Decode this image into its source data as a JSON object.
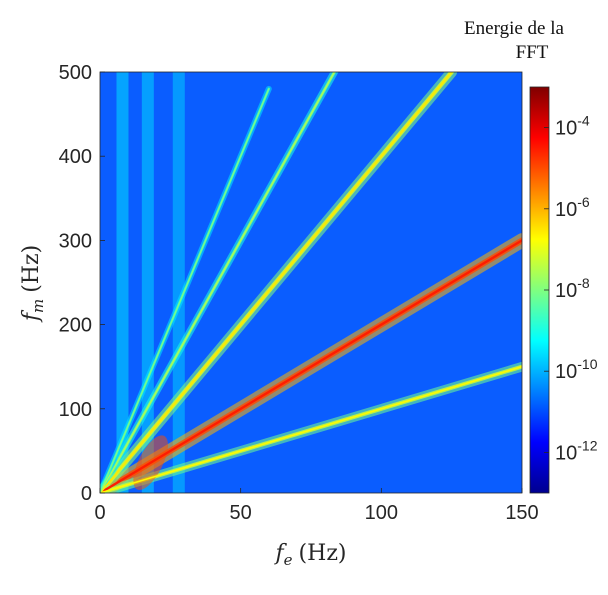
{
  "chart_data": {
    "type": "heatmap",
    "title": "",
    "xlabel_symbol": "f",
    "xlabel_sub": "e",
    "xlabel_unit": "(Hz)",
    "ylabel_symbol": "f",
    "ylabel_sub": "m",
    "ylabel_unit": "(Hz)",
    "xlim": [
      0,
      150
    ],
    "ylim": [
      0,
      500
    ],
    "x_ticks": [
      0,
      50,
      100,
      150
    ],
    "y_ticks": [
      0,
      100,
      200,
      300,
      400,
      500
    ],
    "colorbar": {
      "title_line1": "Energie de la",
      "title_line2": "FFT",
      "scale": "log",
      "range": [
        1e-13,
        0.001
      ],
      "ticks": [
        {
          "value": 0.0001,
          "base": "10",
          "exp": "-4"
        },
        {
          "value": 1e-06,
          "base": "10",
          "exp": "-6"
        },
        {
          "value": 1e-08,
          "base": "10",
          "exp": "-8"
        },
        {
          "value": 1e-10,
          "base": "10",
          "exp": "-10"
        },
        {
          "value": 1e-12,
          "base": "10",
          "exp": "-12"
        }
      ],
      "colormap": "jet"
    },
    "background_level": 1e-10,
    "lines": [
      {
        "slope": 2.0,
        "peak": 3e-05,
        "width": 2.4,
        "x_end": 150
      },
      {
        "slope": 1.0,
        "peak": 2e-07,
        "width": 1.6,
        "x_end": 150
      },
      {
        "slope": 4.0,
        "peak": 3e-07,
        "width": 1.8,
        "x_end": 125
      },
      {
        "slope": 6.0,
        "peak": 3e-08,
        "width": 1.2,
        "x_end": 84
      },
      {
        "slope": 8.0,
        "peak": 1e-08,
        "width": 1.0,
        "x_end": 60
      }
    ],
    "vertical_bands": [
      {
        "x": 8,
        "level": 5e-10
      },
      {
        "x": 17,
        "level": 4e-10
      },
      {
        "x": 28,
        "level": 3e-10
      }
    ]
  }
}
